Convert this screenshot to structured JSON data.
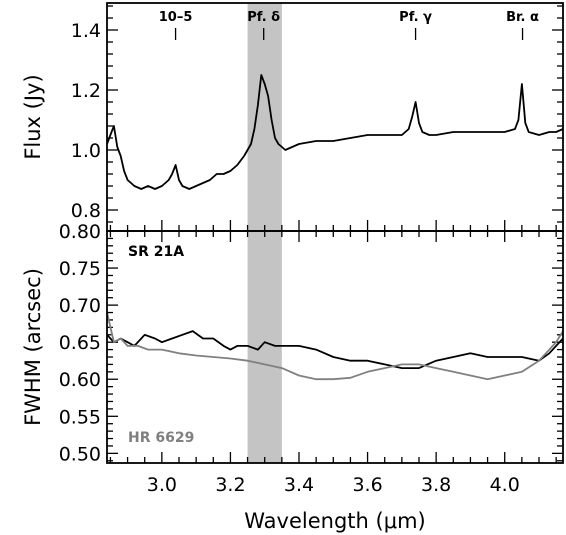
{
  "chart_data": [
    {
      "type": "line",
      "panel": "top",
      "ylabel": "Flux (Jy)",
      "xlim": [
        2.84,
        4.17
      ],
      "ylim": [
        0.73,
        1.49
      ],
      "yticks": [
        0.8,
        1.0,
        1.2,
        1.4
      ],
      "ytick_labels": [
        "0.8",
        "1.0",
        "1.2",
        "1.4"
      ],
      "shaded_band": {
        "x": [
          3.25,
          3.35
        ],
        "color": "#c4c4c4"
      },
      "line_markers": [
        {
          "label": "10–5",
          "x": 3.04
        },
        {
          "label": "Pf. δ",
          "x": 3.297
        },
        {
          "label": "Pf. γ",
          "x": 3.74
        },
        {
          "label": "Br. α",
          "x": 4.052
        }
      ],
      "series": [
        {
          "color": "#000000",
          "x": [
            2.84,
            2.85,
            2.86,
            2.87,
            2.88,
            2.89,
            2.9,
            2.92,
            2.94,
            2.96,
            2.98,
            3.0,
            3.02,
            3.03,
            3.04,
            3.05,
            3.06,
            3.08,
            3.1,
            3.12,
            3.14,
            3.16,
            3.18,
            3.2,
            3.22,
            3.24,
            3.26,
            3.27,
            3.28,
            3.29,
            3.3,
            3.31,
            3.32,
            3.33,
            3.34,
            3.35,
            3.36,
            3.38,
            3.4,
            3.45,
            3.5,
            3.55,
            3.6,
            3.65,
            3.7,
            3.72,
            3.73,
            3.74,
            3.75,
            3.76,
            3.78,
            3.8,
            3.85,
            3.9,
            3.95,
            4.0,
            4.03,
            4.04,
            4.05,
            4.06,
            4.07,
            4.1,
            4.13,
            4.15,
            4.17
          ],
          "y": [
            1.02,
            1.05,
            1.08,
            1.01,
            0.98,
            0.93,
            0.9,
            0.88,
            0.87,
            0.88,
            0.87,
            0.88,
            0.9,
            0.92,
            0.95,
            0.9,
            0.88,
            0.87,
            0.88,
            0.89,
            0.9,
            0.92,
            0.92,
            0.93,
            0.95,
            0.98,
            1.02,
            1.07,
            1.15,
            1.25,
            1.22,
            1.18,
            1.1,
            1.04,
            1.02,
            1.01,
            1.0,
            1.01,
            1.02,
            1.03,
            1.03,
            1.04,
            1.05,
            1.05,
            1.05,
            1.07,
            1.11,
            1.16,
            1.09,
            1.06,
            1.05,
            1.05,
            1.06,
            1.06,
            1.06,
            1.06,
            1.07,
            1.1,
            1.22,
            1.09,
            1.06,
            1.05,
            1.06,
            1.06,
            1.07
          ]
        }
      ]
    },
    {
      "type": "line",
      "panel": "bottom",
      "xlabel": "Wavelength (μm)",
      "ylabel": "FWHM (arcsec)",
      "xlim": [
        2.84,
        4.17
      ],
      "ylim": [
        0.487,
        0.8
      ],
      "xticks": [
        3.0,
        3.2,
        3.4,
        3.6,
        3.8,
        4.0
      ],
      "xtick_labels": [
        "3.0",
        "3.2",
        "3.4",
        "3.6",
        "3.8",
        "4.0"
      ],
      "yticks": [
        0.5,
        0.55,
        0.6,
        0.65,
        0.7,
        0.75,
        0.8
      ],
      "ytick_labels": [
        "0.50",
        "0.55",
        "0.60",
        "0.65",
        "0.70",
        "0.75",
        "0.80"
      ],
      "shaded_band": {
        "x": [
          3.25,
          3.35
        ],
        "color": "#c4c4c4"
      },
      "series": [
        {
          "name": "SR 21A",
          "color": "#000000",
          "x": [
            2.84,
            2.86,
            2.88,
            2.9,
            2.92,
            2.95,
            2.98,
            3.0,
            3.03,
            3.06,
            3.09,
            3.12,
            3.15,
            3.18,
            3.2,
            3.22,
            3.25,
            3.28,
            3.3,
            3.33,
            3.36,
            3.4,
            3.45,
            3.5,
            3.55,
            3.6,
            3.65,
            3.7,
            3.75,
            3.8,
            3.85,
            3.9,
            3.95,
            4.0,
            4.05,
            4.1,
            4.13,
            4.15,
            4.17
          ],
          "y": [
            0.66,
            0.65,
            0.655,
            0.65,
            0.645,
            0.66,
            0.655,
            0.65,
            0.655,
            0.66,
            0.665,
            0.655,
            0.655,
            0.645,
            0.64,
            0.645,
            0.645,
            0.64,
            0.65,
            0.645,
            0.645,
            0.645,
            0.64,
            0.63,
            0.625,
            0.625,
            0.62,
            0.615,
            0.615,
            0.625,
            0.63,
            0.635,
            0.63,
            0.63,
            0.63,
            0.625,
            0.635,
            0.645,
            0.655
          ]
        },
        {
          "name": "HR 6629",
          "color": "#808080",
          "x": [
            2.84,
            2.86,
            2.88,
            2.9,
            2.93,
            2.96,
            3.0,
            3.05,
            3.1,
            3.15,
            3.2,
            3.25,
            3.3,
            3.35,
            3.4,
            3.45,
            3.5,
            3.55,
            3.6,
            3.65,
            3.7,
            3.75,
            3.8,
            3.85,
            3.9,
            3.95,
            4.0,
            4.05,
            4.1,
            4.13,
            4.15,
            4.17
          ],
          "y": [
            0.69,
            0.65,
            0.655,
            0.645,
            0.645,
            0.64,
            0.64,
            0.635,
            0.632,
            0.63,
            0.628,
            0.625,
            0.62,
            0.615,
            0.605,
            0.6,
            0.6,
            0.602,
            0.61,
            0.615,
            0.62,
            0.62,
            0.615,
            0.61,
            0.605,
            0.6,
            0.605,
            0.61,
            0.625,
            0.64,
            0.65,
            0.665
          ]
        }
      ]
    }
  ]
}
